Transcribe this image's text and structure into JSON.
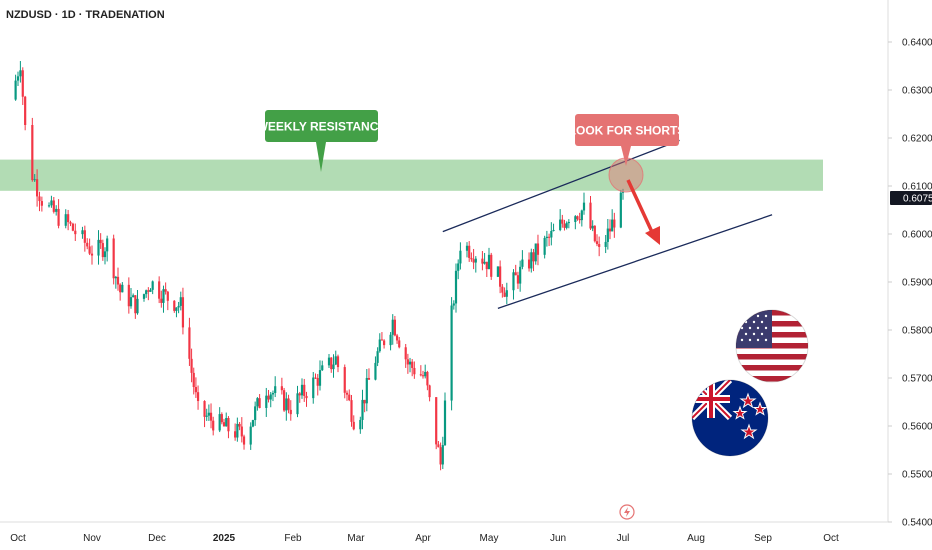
{
  "header": {
    "title": "NZDUSD · 1D · TRADENATION"
  },
  "chart_data": {
    "type": "candlestick",
    "symbol": "NZDUSD",
    "timeframe": "1D",
    "source": "TRADENATION",
    "ylim": [
      0.54,
      0.645
    ],
    "y_ticks": [
      "0.64000",
      "0.63000",
      "0.62000",
      "0.61000",
      "0.60000",
      "0.59000",
      "0.58000",
      "0.57000",
      "0.56000",
      "0.55000",
      "0.54000"
    ],
    "y_tick_values": [
      0.64,
      0.63,
      0.62,
      0.61,
      0.6,
      0.59,
      0.58,
      0.57,
      0.56,
      0.55,
      0.54
    ],
    "x_ticks": [
      "Oct",
      "Nov",
      "Dec",
      "2025",
      "Feb",
      "Mar",
      "Apr",
      "May",
      "Jun",
      "Jul",
      "Aug",
      "Sep",
      "Oct"
    ],
    "current_price": "0.60750",
    "current_price_value": 0.6075,
    "colors": {
      "up": "#089981",
      "down": "#f23645",
      "zone": "#a5d6a7",
      "channel": "#1a2a5a",
      "arrow": "#e53935",
      "resistance_label": "#43a047",
      "shorts_label": "#e57373",
      "price_badge": "#131722"
    },
    "resistance_zone": {
      "from": 0.609,
      "to": 0.6155
    },
    "channel": {
      "upper": {
        "start": [
          "2025-04-10",
          0.6005
        ],
        "end": [
          "2025-07-25",
          0.6195
        ]
      },
      "lower": {
        "start": [
          "2025-05-05",
          0.5845
        ],
        "end": [
          "2025-09-05",
          0.604
        ]
      }
    },
    "annotations": [
      {
        "text": "WEEKLY RESISTANCE",
        "color": "#43a047"
      },
      {
        "text": "LOOK FOR SHORTS",
        "color": "#e57373"
      }
    ],
    "trend_segments": [
      {
        "date": "2024-09-28",
        "price": 0.628
      },
      {
        "date": "2024-10-02",
        "price": 0.636
      },
      {
        "date": "2024-10-05",
        "price": 0.615
      },
      {
        "date": "2024-10-12",
        "price": 0.606
      },
      {
        "date": "2024-10-22",
        "price": 0.602
      },
      {
        "date": "2024-11-02",
        "price": 0.596
      },
      {
        "date": "2024-11-08",
        "price": 0.598
      },
      {
        "date": "2024-11-14",
        "price": 0.588
      },
      {
        "date": "2024-11-22",
        "price": 0.585
      },
      {
        "date": "2024-11-28",
        "price": 0.59
      },
      {
        "date": "2024-12-05",
        "price": 0.587
      },
      {
        "date": "2024-12-12",
        "price": 0.585
      },
      {
        "date": "2024-12-20",
        "price": 0.563
      },
      {
        "date": "2024-12-31",
        "price": 0.56
      },
      {
        "date": "2025-01-10",
        "price": 0.558
      },
      {
        "date": "2025-01-20",
        "price": 0.568
      },
      {
        "date": "2025-01-31",
        "price": 0.564
      },
      {
        "date": "2025-02-10",
        "price": 0.569
      },
      {
        "date": "2025-02-20",
        "price": 0.574
      },
      {
        "date": "2025-03-01",
        "price": 0.56
      },
      {
        "date": "2025-03-10",
        "price": 0.574
      },
      {
        "date": "2025-03-18",
        "price": 0.582
      },
      {
        "date": "2025-03-25",
        "price": 0.573
      },
      {
        "date": "2025-04-02",
        "price": 0.57
      },
      {
        "date": "2025-04-09",
        "price": 0.552
      },
      {
        "date": "2025-04-14",
        "price": 0.583
      },
      {
        "date": "2025-04-18",
        "price": 0.598
      },
      {
        "date": "2025-04-25",
        "price": 0.596
      },
      {
        "date": "2025-05-01",
        "price": 0.594
      },
      {
        "date": "2025-05-09",
        "price": 0.588
      },
      {
        "date": "2025-05-15",
        "price": 0.592
      },
      {
        "date": "2025-05-22",
        "price": 0.596
      },
      {
        "date": "2025-05-30",
        "price": 0.6
      },
      {
        "date": "2025-06-06",
        "price": 0.604
      },
      {
        "date": "2025-06-13",
        "price": 0.605
      },
      {
        "date": "2025-06-20",
        "price": 0.596
      },
      {
        "date": "2025-06-25",
        "price": 0.601
      },
      {
        "date": "2025-07-01",
        "price": 0.6075
      }
    ]
  }
}
